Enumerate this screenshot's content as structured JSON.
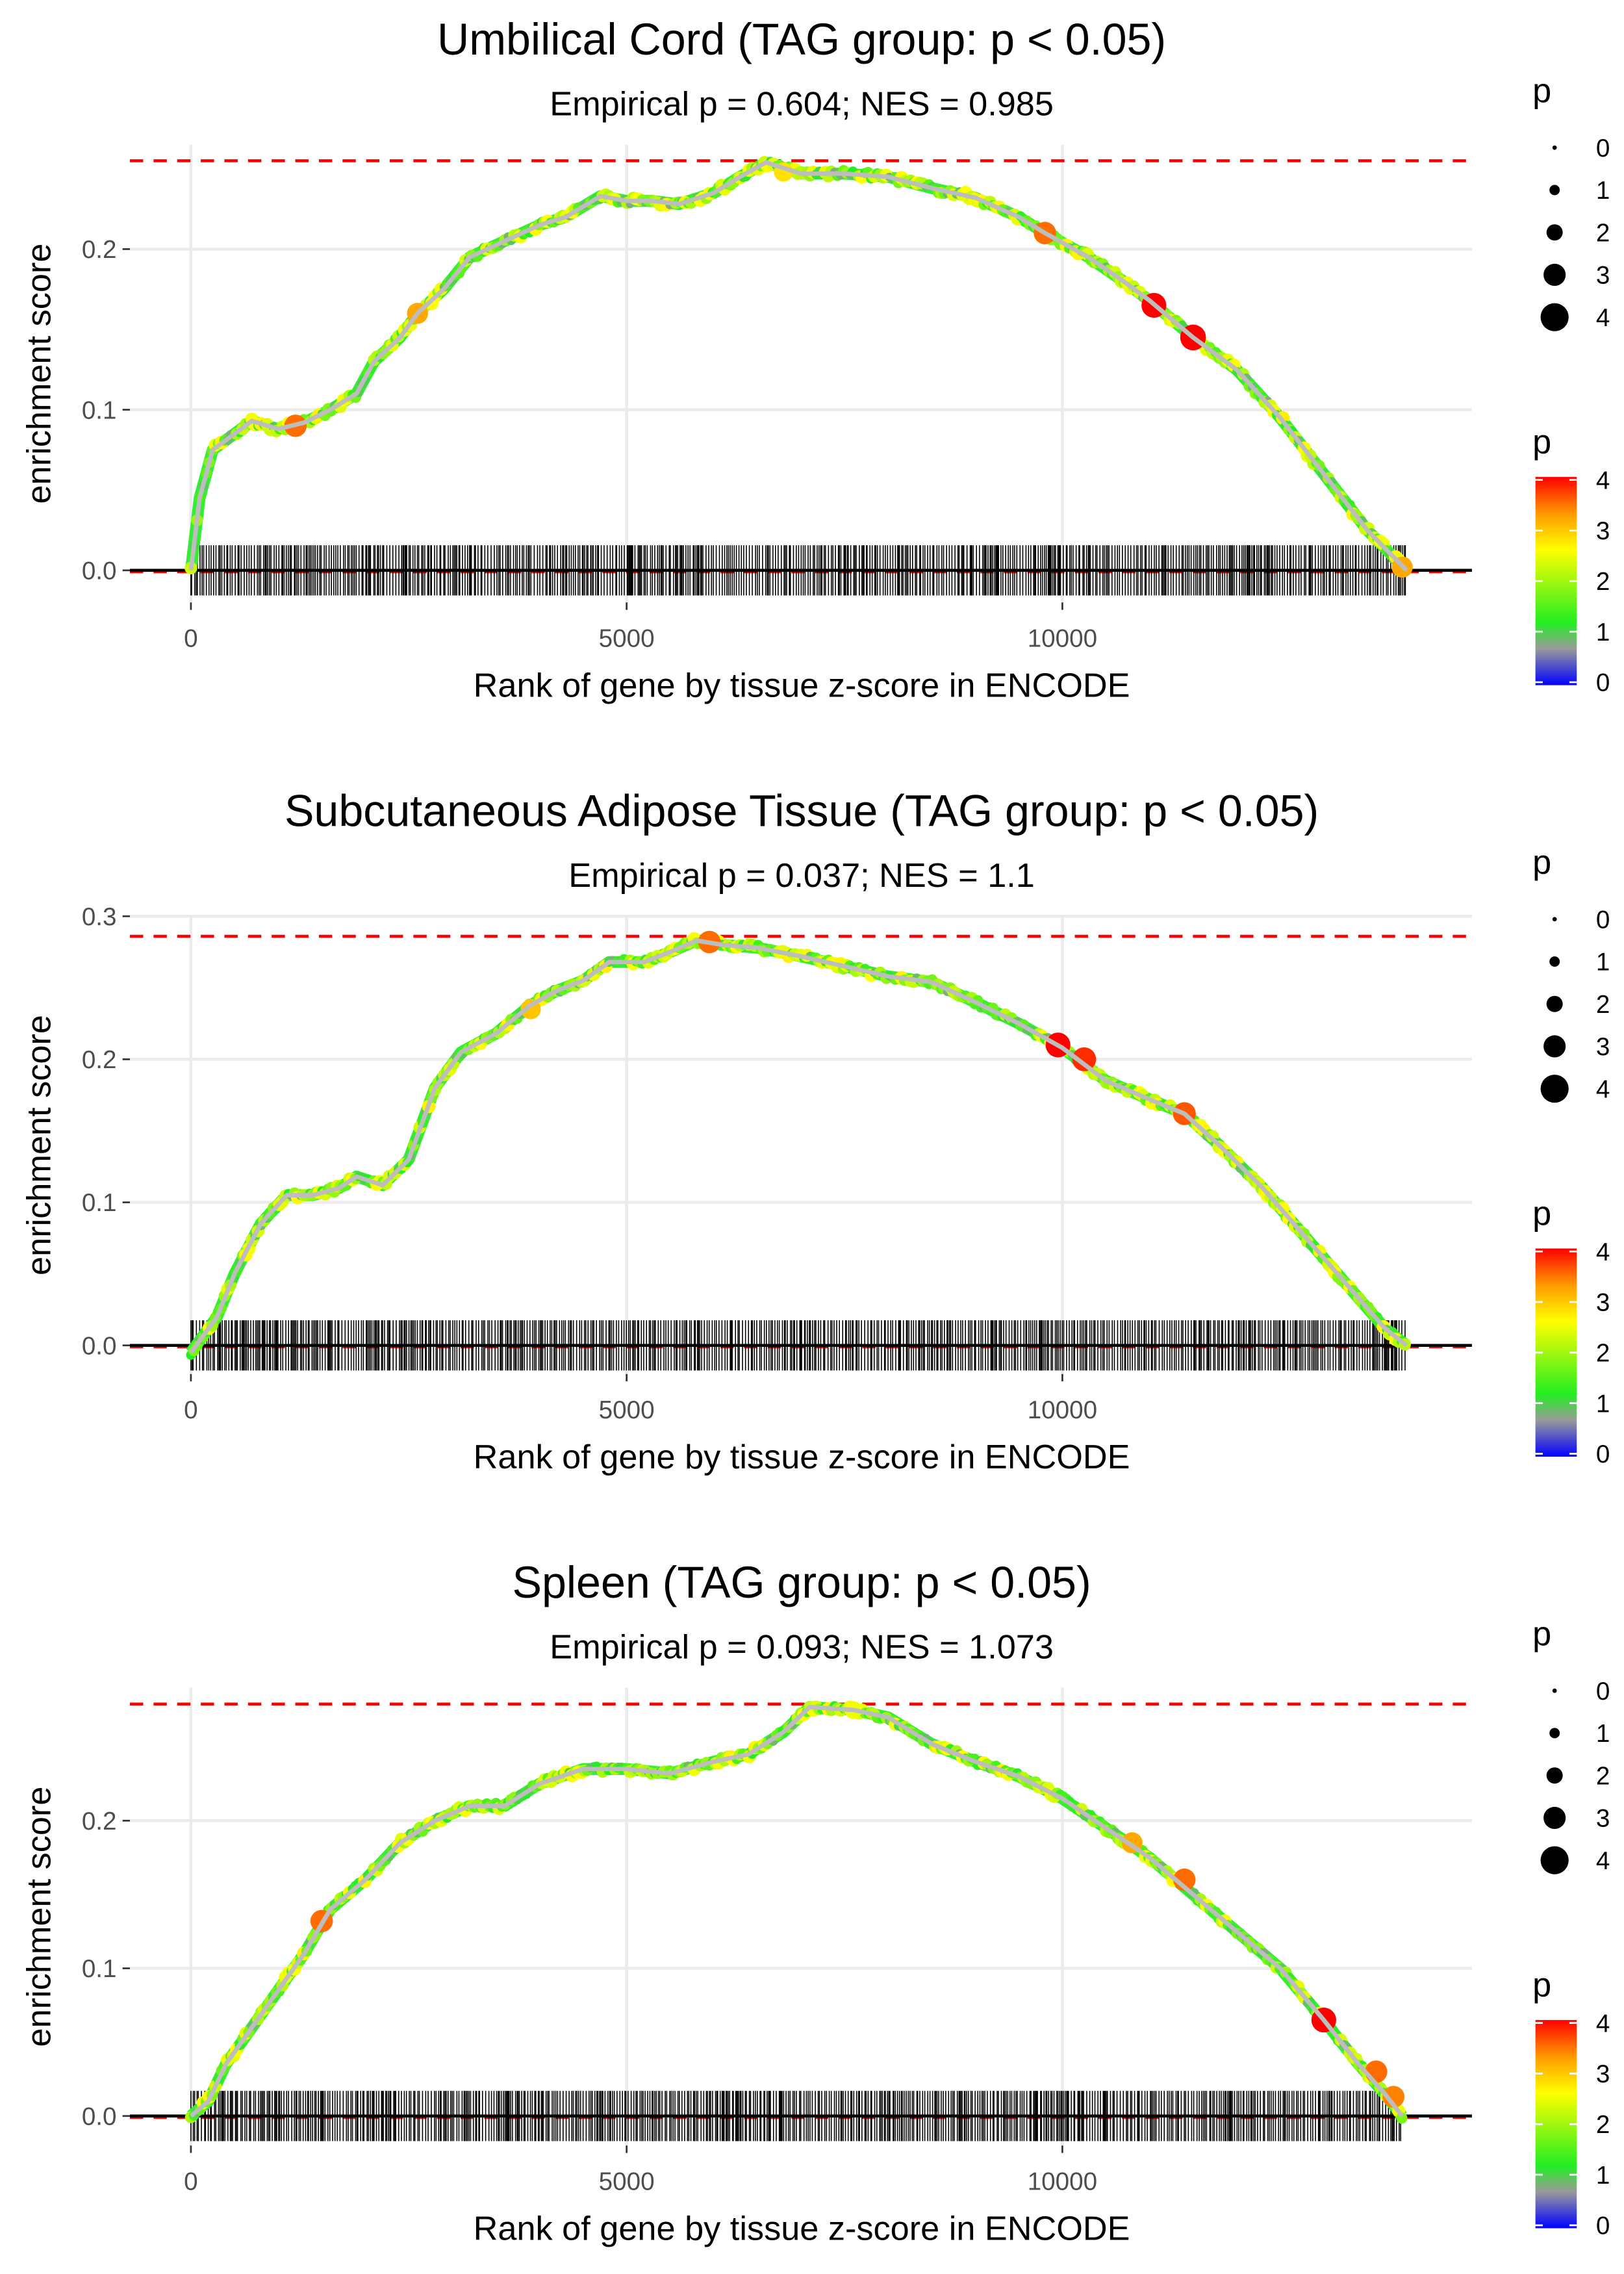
{
  "colors": {
    "dashed": "#ff0000",
    "grid": "#ebebeb",
    "scale_stops": [
      [
        "0",
        "#0000ff"
      ],
      [
        "0.7",
        "#9a9a9a"
      ],
      [
        "1.2",
        "#22ee22"
      ],
      [
        "2.6",
        "#ffff00"
      ],
      [
        "3.3",
        "#ff9900"
      ],
      [
        "4",
        "#ff0000"
      ]
    ]
  },
  "legend": {
    "size_title": "p",
    "color_title": "p",
    "levels": [
      "0",
      "1",
      "2",
      "3",
      "4"
    ]
  },
  "chart_data": [
    {
      "type": "line",
      "title": "Umbilical Cord (TAG group: p < 0.05)",
      "subtitle": "Empirical p = 0.604; NES = 0.985",
      "xlabel": "Rank of gene by tissue z-score in ENCODE",
      "ylabel": "enrichment score",
      "xlim": [
        -700,
        14700
      ],
      "ylim": [
        -0.02,
        0.265
      ],
      "x_ticks": [
        [
          "0",
          0
        ],
        [
          "5000",
          5000
        ],
        [
          "10000",
          10000
        ]
      ],
      "y_ticks": [
        [
          "0.0",
          0
        ],
        [
          "0.1",
          0.1
        ],
        [
          "0.2",
          0.2
        ]
      ],
      "max_es": 0.255,
      "n_genes": 13950,
      "curve": [
        [
          0,
          0
        ],
        [
          100,
          0.045
        ],
        [
          250,
          0.075
        ],
        [
          500,
          0.085
        ],
        [
          700,
          0.093
        ],
        [
          1000,
          0.088
        ],
        [
          1300,
          0.092
        ],
        [
          1600,
          0.1
        ],
        [
          1900,
          0.11
        ],
        [
          2100,
          0.13
        ],
        [
          2400,
          0.145
        ],
        [
          2600,
          0.16
        ],
        [
          2900,
          0.175
        ],
        [
          3200,
          0.195
        ],
        [
          3600,
          0.205
        ],
        [
          4000,
          0.215
        ],
        [
          4300,
          0.22
        ],
        [
          4700,
          0.233
        ],
        [
          5000,
          0.23
        ],
        [
          5300,
          0.23
        ],
        [
          5600,
          0.228
        ],
        [
          6000,
          0.235
        ],
        [
          6300,
          0.245
        ],
        [
          6600,
          0.254
        ],
        [
          7000,
          0.247
        ],
        [
          7500,
          0.247
        ],
        [
          8000,
          0.245
        ],
        [
          8500,
          0.238
        ],
        [
          9000,
          0.232
        ],
        [
          9500,
          0.22
        ],
        [
          9800,
          0.21
        ],
        [
          10300,
          0.195
        ],
        [
          10700,
          0.18
        ],
        [
          11000,
          0.168
        ],
        [
          11500,
          0.145
        ],
        [
          12000,
          0.125
        ],
        [
          12500,
          0.095
        ],
        [
          13000,
          0.06
        ],
        [
          13500,
          0.025
        ],
        [
          13950,
          0.0
        ]
      ],
      "highlight_points": [
        [
          1200,
          0.09,
          3.5
        ],
        [
          2600,
          0.16,
          3.2
        ],
        [
          6800,
          0.248,
          2.8
        ],
        [
          9800,
          0.21,
          3.5
        ],
        [
          11050,
          0.165,
          4
        ],
        [
          11500,
          0.145,
          4.2
        ],
        [
          13900,
          0.002,
          3.2
        ]
      ]
    },
    {
      "type": "line",
      "title": "Subcutaneous Adipose Tissue (TAG group: p < 0.05)",
      "subtitle": "Empirical p = 0.037; NES = 1.1",
      "xlabel": "Rank of gene by tissue z-score in ENCODE",
      "ylabel": "enrichment score",
      "xlim": [
        -700,
        14700
      ],
      "ylim": [
        -0.02,
        0.3
      ],
      "x_ticks": [
        [
          "0",
          0
        ],
        [
          "5000",
          5000
        ],
        [
          "10000",
          10000
        ]
      ],
      "y_ticks": [
        [
          "0.0",
          0
        ],
        [
          "0.1",
          0.1
        ],
        [
          "0.2",
          0.2
        ],
        [
          "0.3",
          0.3
        ]
      ],
      "max_es": 0.286,
      "n_genes": 13950,
      "curve": [
        [
          0,
          -0.005
        ],
        [
          300,
          0.02
        ],
        [
          500,
          0.05
        ],
        [
          800,
          0.085
        ],
        [
          1100,
          0.105
        ],
        [
          1400,
          0.105
        ],
        [
          1700,
          0.11
        ],
        [
          1900,
          0.118
        ],
        [
          2200,
          0.112
        ],
        [
          2500,
          0.13
        ],
        [
          2800,
          0.18
        ],
        [
          3100,
          0.205
        ],
        [
          3500,
          0.218
        ],
        [
          3900,
          0.238
        ],
        [
          4200,
          0.248
        ],
        [
          4500,
          0.255
        ],
        [
          4800,
          0.268
        ],
        [
          5200,
          0.268
        ],
        [
          5500,
          0.275
        ],
        [
          5800,
          0.283
        ],
        [
          6100,
          0.28
        ],
        [
          6500,
          0.278
        ],
        [
          7000,
          0.272
        ],
        [
          7500,
          0.265
        ],
        [
          8000,
          0.258
        ],
        [
          8500,
          0.254
        ],
        [
          9000,
          0.24
        ],
        [
          9500,
          0.225
        ],
        [
          10000,
          0.208
        ],
        [
          10500,
          0.185
        ],
        [
          11000,
          0.172
        ],
        [
          11400,
          0.162
        ],
        [
          11800,
          0.14
        ],
        [
          12300,
          0.11
        ],
        [
          12800,
          0.075
        ],
        [
          13300,
          0.04
        ],
        [
          13700,
          0.012
        ],
        [
          13950,
          0
        ]
      ],
      "highlight_points": [
        [
          3900,
          0.235,
          3
        ],
        [
          5950,
          0.282,
          3.5
        ],
        [
          9950,
          0.21,
          4
        ],
        [
          10250,
          0.2,
          3.8
        ],
        [
          11400,
          0.162,
          3.6
        ]
      ]
    },
    {
      "type": "line",
      "title": "Spleen (TAG group: p < 0.05)",
      "subtitle": "Empirical p = 0.093; NES = 1.073",
      "xlabel": "Rank of gene by tissue z-score in ENCODE",
      "ylabel": "enrichment score",
      "xlim": [
        -700,
        14700
      ],
      "ylim": [
        -0.02,
        0.29
      ],
      "x_ticks": [
        [
          "0",
          0
        ],
        [
          "5000",
          5000
        ],
        [
          "10000",
          10000
        ]
      ],
      "y_ticks": [
        [
          "0.0",
          0
        ],
        [
          "0.1",
          0.1
        ],
        [
          "0.2",
          0.2
        ]
      ],
      "max_es": 0.279,
      "n_genes": 13900,
      "curve": [
        [
          0,
          0
        ],
        [
          200,
          0.01
        ],
        [
          400,
          0.035
        ],
        [
          700,
          0.06
        ],
        [
          1000,
          0.085
        ],
        [
          1300,
          0.11
        ],
        [
          1600,
          0.14
        ],
        [
          2000,
          0.16
        ],
        [
          2400,
          0.185
        ],
        [
          2800,
          0.2
        ],
        [
          3200,
          0.21
        ],
        [
          3600,
          0.21
        ],
        [
          4000,
          0.225
        ],
        [
          4500,
          0.235
        ],
        [
          5000,
          0.235
        ],
        [
          5500,
          0.232
        ],
        [
          6000,
          0.24
        ],
        [
          6400,
          0.245
        ],
        [
          6800,
          0.26
        ],
        [
          7100,
          0.277
        ],
        [
          7600,
          0.275
        ],
        [
          8000,
          0.27
        ],
        [
          8500,
          0.252
        ],
        [
          9000,
          0.24
        ],
        [
          9500,
          0.23
        ],
        [
          10000,
          0.215
        ],
        [
          10500,
          0.195
        ],
        [
          11000,
          0.175
        ],
        [
          11500,
          0.15
        ],
        [
          12000,
          0.125
        ],
        [
          12500,
          0.1
        ],
        [
          13000,
          0.065
        ],
        [
          13400,
          0.035
        ],
        [
          13700,
          0.015
        ],
        [
          13900,
          0
        ]
      ],
      "highlight_points": [
        [
          1500,
          0.132,
          3.5
        ],
        [
          7600,
          0.275,
          2.5
        ],
        [
          10800,
          0.185,
          3.2
        ],
        [
          11400,
          0.16,
          3.5
        ],
        [
          13000,
          0.065,
          4
        ],
        [
          13600,
          0.03,
          3.5
        ],
        [
          13800,
          0.013,
          3.4
        ]
      ]
    }
  ]
}
